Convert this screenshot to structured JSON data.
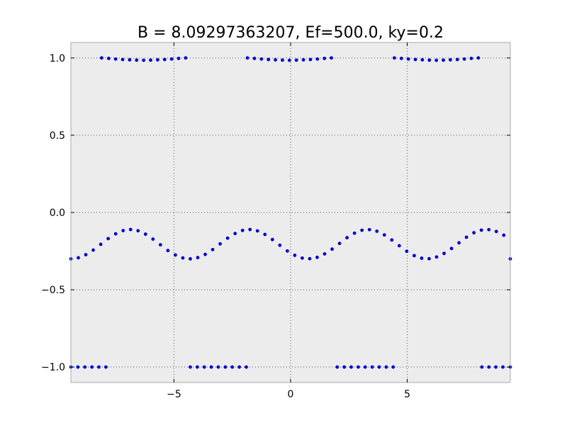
{
  "chart_data": {
    "type": "scatter",
    "title": "B = 8.09297363207, Ef=500.0, ky=0.2",
    "xlabel": "",
    "ylabel": "",
    "xlim": [
      -9.42,
      9.42
    ],
    "ylim": [
      -1.1,
      1.1
    ],
    "xticks": [
      -5,
      0,
      5
    ],
    "xtick_labels": [
      "−5",
      "0",
      "5"
    ],
    "yticks": [
      1.0,
      0.5,
      0.0,
      -0.5,
      -1.0
    ],
    "ytick_labels": [
      "1.0",
      "0.5",
      "0.0",
      "−0.5",
      "−1.0"
    ],
    "grid": true,
    "legend": "none",
    "background_color": "#ececec",
    "marker_color": "#0000cc",
    "series": [
      {
        "values_description": "middle band",
        "x": [
          -9.42,
          -9.1,
          -8.78,
          -8.46,
          -8.14,
          -7.82,
          -7.5,
          -7.18,
          -6.86,
          -6.54,
          -6.22,
          -5.9,
          -5.58,
          -5.26,
          -4.94,
          -4.62,
          -4.3,
          -3.98,
          -3.66,
          -3.34,
          -3.02,
          -2.7,
          -2.38,
          -2.06,
          -1.74,
          -1.42,
          -1.1,
          -0.78,
          -0.46,
          -0.14,
          0.18,
          0.5,
          0.82,
          1.14,
          1.46,
          1.78,
          2.1,
          2.42,
          2.74,
          3.06,
          3.38,
          3.7,
          4.02,
          4.34,
          4.66,
          4.98,
          5.3,
          5.62,
          5.94,
          6.26,
          6.58,
          6.9,
          7.22,
          7.54,
          7.86,
          8.18,
          8.5,
          8.82,
          9.14,
          9.42
        ],
        "y": [
          -0.3,
          -0.293,
          -0.273,
          -0.243,
          -0.206,
          -0.169,
          -0.138,
          -0.117,
          -0.11,
          -0.118,
          -0.14,
          -0.172,
          -0.209,
          -0.246,
          -0.275,
          -0.294,
          -0.3,
          -0.292,
          -0.271,
          -0.24,
          -0.203,
          -0.166,
          -0.136,
          -0.116,
          -0.11,
          -0.119,
          -0.142,
          -0.175,
          -0.212,
          -0.249,
          -0.277,
          -0.295,
          -0.299,
          -0.29,
          -0.268,
          -0.237,
          -0.2,
          -0.163,
          -0.134,
          -0.115,
          -0.111,
          -0.121,
          -0.145,
          -0.178,
          -0.215,
          -0.251,
          -0.279,
          -0.296,
          -0.299,
          -0.288,
          -0.265,
          -0.233,
          -0.196,
          -0.16,
          -0.131,
          -0.114,
          -0.111,
          -0.123,
          -0.147,
          -0.3
        ]
      },
      {
        "values_description": "upper band",
        "x": [
          -8.1,
          -7.8,
          -7.5,
          -7.2,
          -6.9,
          -6.6,
          -6.3,
          -6.0,
          -5.7,
          -5.4,
          -5.1,
          -4.8,
          -4.5,
          -1.85,
          -1.55,
          -1.25,
          -0.95,
          -0.65,
          -0.35,
          -0.05,
          0.25,
          0.55,
          0.85,
          1.15,
          1.45,
          1.75,
          4.45,
          4.75,
          5.05,
          5.35,
          5.65,
          5.95,
          6.25,
          6.55,
          6.85,
          7.15,
          7.45,
          7.75,
          8.05
        ],
        "y": [
          1.0,
          0.997,
          0.993,
          0.99,
          0.988,
          0.986,
          0.985,
          0.986,
          0.988,
          0.99,
          0.993,
          0.997,
          1.0,
          1.0,
          0.997,
          0.993,
          0.99,
          0.988,
          0.986,
          0.985,
          0.986,
          0.988,
          0.99,
          0.993,
          0.997,
          1.0,
          1.0,
          0.997,
          0.993,
          0.99,
          0.988,
          0.986,
          0.985,
          0.986,
          0.988,
          0.99,
          0.993,
          0.997,
          1.0
        ]
      },
      {
        "values_description": "lower band",
        "x": [
          -9.42,
          -9.12,
          -8.82,
          -8.52,
          -8.22,
          -7.92,
          -4.3,
          -4.0,
          -3.7,
          -3.4,
          -3.1,
          -2.8,
          -2.5,
          -2.2,
          -1.9,
          2.0,
          2.3,
          2.6,
          2.9,
          3.2,
          3.5,
          3.8,
          4.1,
          4.4,
          8.2,
          8.5,
          8.8,
          9.1,
          9.42
        ],
        "y": [
          -1.0,
          -1.0,
          -1.0,
          -1.0,
          -1.0,
          -1.0,
          -1.0,
          -1.0,
          -1.0,
          -1.0,
          -1.0,
          -1.0,
          -1.0,
          -1.0,
          -1.0,
          -1.0,
          -1.0,
          -1.0,
          -1.0,
          -1.0,
          -1.0,
          -1.0,
          -1.0,
          -1.0,
          -1.0,
          -1.0,
          -1.0,
          -1.0,
          -1.0
        ]
      }
    ]
  }
}
